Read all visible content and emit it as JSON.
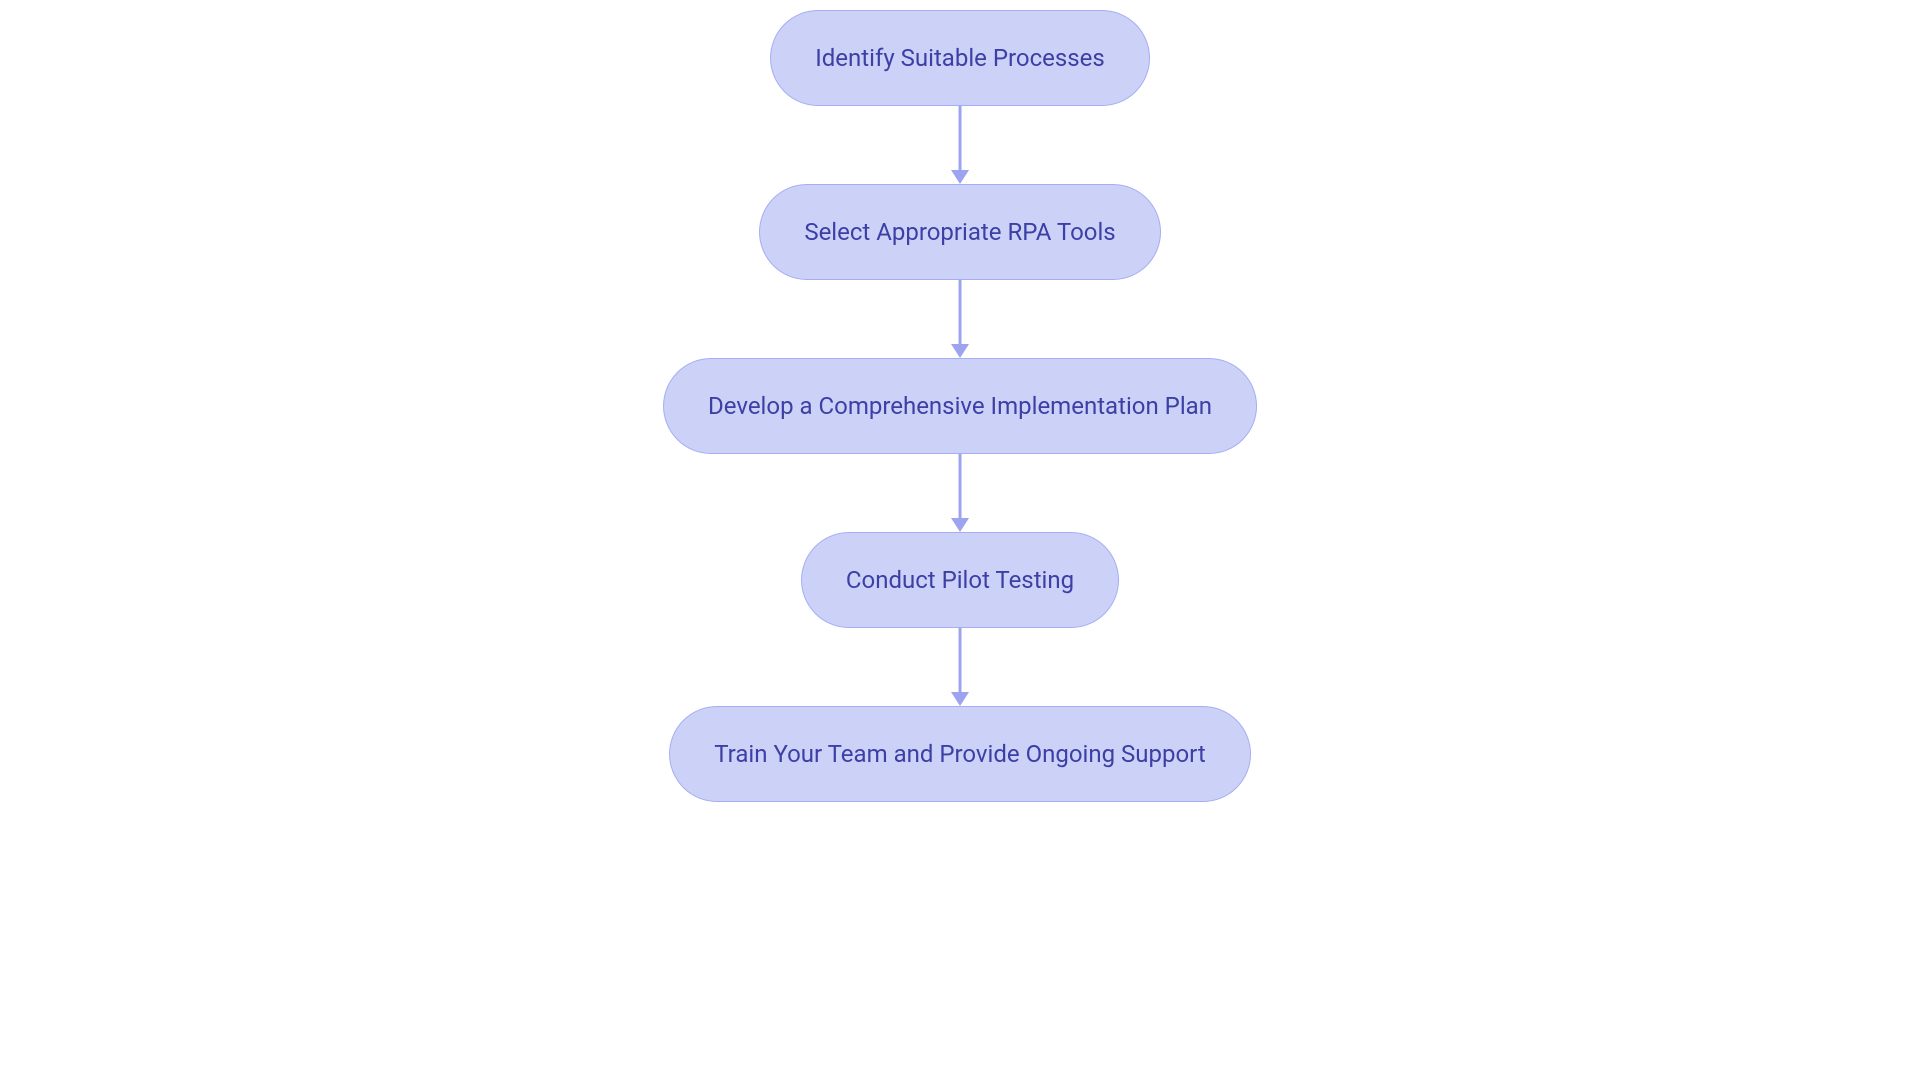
{
  "flowchart": {
    "type": "flowchart",
    "direction": "vertical",
    "background_color": "#ffffff",
    "node_style": {
      "fill": "#ccd1f8",
      "stroke": "#a6aef3",
      "stroke_width": 1,
      "border_radius": 48,
      "text_color": "#3c3fa4",
      "font_size": 24,
      "font_weight": 400,
      "height": 96,
      "padding_x": 44
    },
    "arrow_style": {
      "color": "#9ca4f0",
      "stroke_width": 3,
      "length": 78,
      "head_width": 18,
      "head_height": 14
    },
    "nodes": [
      {
        "id": "n1",
        "label": "Identify Suitable Processes"
      },
      {
        "id": "n2",
        "label": "Select Appropriate RPA Tools"
      },
      {
        "id": "n3",
        "label": "Develop a Comprehensive Implementation Plan"
      },
      {
        "id": "n4",
        "label": "Conduct Pilot Testing"
      },
      {
        "id": "n5",
        "label": "Train Your Team and Provide Ongoing Support"
      }
    ],
    "edges": [
      {
        "from": "n1",
        "to": "n2"
      },
      {
        "from": "n2",
        "to": "n3"
      },
      {
        "from": "n3",
        "to": "n4"
      },
      {
        "from": "n4",
        "to": "n5"
      }
    ]
  }
}
